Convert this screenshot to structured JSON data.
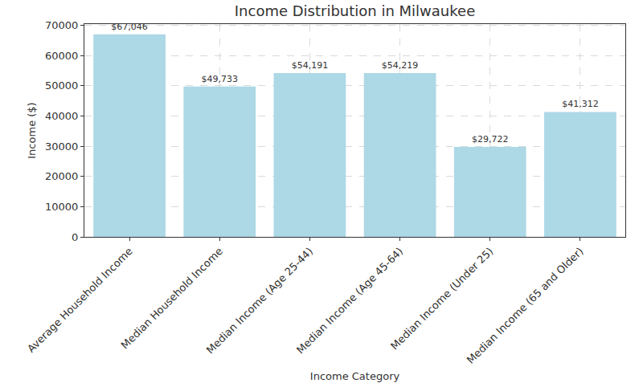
{
  "chart_data": {
    "type": "bar",
    "title": "Income Distribution in Milwaukee",
    "x_label": "Income Category",
    "y_label": "Income ($)",
    "categories": [
      "Average Household Income",
      "Median Household Income",
      "Median Income (Age 25-44)",
      "Median Income (Age 45-64)",
      "Median Income (Under 25)",
      "Median Income (65 and Older)"
    ],
    "values": [
      67046,
      49733,
      54191,
      54219,
      29722,
      41312
    ],
    "value_labels": [
      "$67,046",
      "$49,733",
      "$54,191",
      "$54,219",
      "$29,722",
      "$41,312"
    ],
    "color": "#add8e6",
    "ylim": [
      0,
      70400
    ],
    "yticks": [
      0,
      10000,
      20000,
      30000,
      40000,
      50000,
      60000,
      70000
    ],
    "grid": true,
    "data_labels": true
  }
}
